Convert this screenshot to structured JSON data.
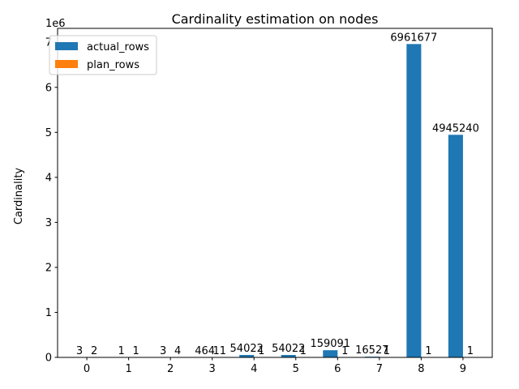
{
  "chart_data": {
    "type": "bar",
    "title": "Cardinality estimation on nodes",
    "xlabel": "",
    "ylabel": "Cardinality",
    "y_scale_label": "1e6",
    "categories": [
      "0",
      "1",
      "2",
      "3",
      "4",
      "5",
      "6",
      "7",
      "8",
      "9"
    ],
    "series": [
      {
        "name": "actual_rows",
        "color": "#1f77b4",
        "values": [
          3,
          1,
          3,
          464,
          54022,
          54022,
          159091,
          16527,
          6961677,
          4945240
        ]
      },
      {
        "name": "plan_rows",
        "color": "#ff7f0e",
        "values": [
          2,
          1,
          4,
          11,
          1,
          1,
          1,
          1,
          1,
          1
        ]
      }
    ],
    "ylim": [
      0,
      7310000
    ],
    "yticks": [
      0,
      1,
      2,
      3,
      4,
      5,
      6,
      7
    ],
    "ytick_scale": 1000000,
    "legend_position": "top-left",
    "grid": false
  }
}
